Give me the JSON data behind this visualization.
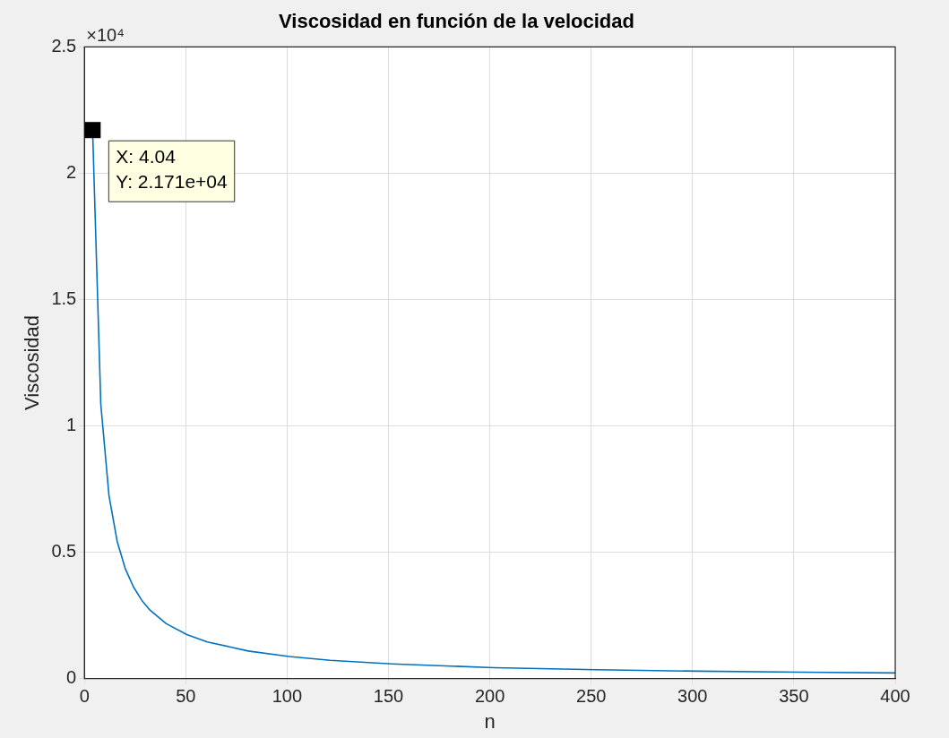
{
  "chart_data": {
    "type": "line",
    "title": "Viscosidad en función de la velocidad",
    "xlabel": "n",
    "ylabel": "Viscosidad",
    "x": [
      4.04,
      8.08,
      12.12,
      16.16,
      20.2,
      24.24,
      28.28,
      32.32,
      40.4,
      50.5,
      60.6,
      80.8,
      101,
      121.2,
      151.5,
      202,
      252.5,
      303,
      353.5,
      400
    ],
    "series": [
      {
        "color": "#0072bd",
        "values": [
          2.171,
          1.086,
          0.724,
          0.543,
          0.434,
          0.362,
          0.31,
          0.271,
          0.217,
          0.174,
          0.145,
          0.109,
          0.087,
          0.072,
          0.058,
          0.043,
          0.035,
          0.029,
          0.025,
          0.022
        ]
      }
    ],
    "xlim": [
      0,
      400
    ],
    "xticks": [
      0,
      50,
      100,
      150,
      200,
      250,
      300,
      350,
      400
    ],
    "ylim": [
      0,
      2.5
    ],
    "yticks": [
      0,
      0.5,
      1,
      1.5,
      2,
      2.5
    ],
    "grid": true,
    "legend": false,
    "marker": "none",
    "line_style": "solid",
    "annotations": [
      "×10⁴",
      {
        "text": "X: 4.04\nY: 2.171e+04",
        "x": 4.04,
        "y": 2.171
      }
    ]
  }
}
